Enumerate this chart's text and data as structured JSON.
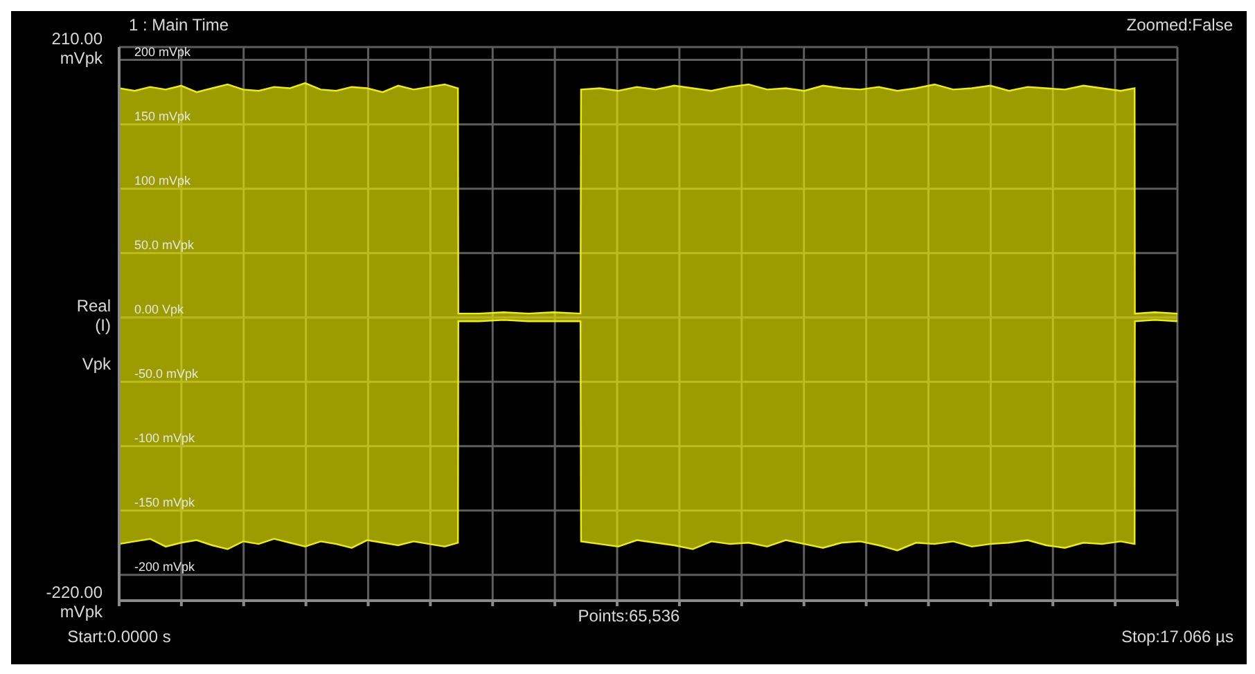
{
  "chart_data": {
    "type": "area",
    "title": "1 : Main Time",
    "ylabel": "Real (I) Vpk",
    "annotations": [
      "Zoomed:False",
      "Points:65,536"
    ],
    "x": [
      0,
      0.25,
      0.5,
      0.75,
      1,
      1.25,
      1.5,
      1.75,
      2,
      2.25,
      2.5,
      2.75,
      3,
      3.25,
      3.5,
      3.75,
      4,
      4.25,
      4.5,
      4.75,
      5,
      5.25,
      5.464,
      5.47,
      5.8,
      6.2,
      6.6,
      7.0,
      7.44,
      7.449,
      7.75,
      8.05,
      8.35,
      8.65,
      8.95,
      9.25,
      9.55,
      9.85,
      10.15,
      10.45,
      10.75,
      11.05,
      11.35,
      11.65,
      11.95,
      12.25,
      12.55,
      12.85,
      13.15,
      13.45,
      13.75,
      14.05,
      14.35,
      14.65,
      14.95,
      15.25,
      15.55,
      15.85,
      16.15,
      16.376,
      16.38,
      16.7,
      17.066
    ],
    "series": [
      {
        "color": "#f0f000",
        "values": [
          178,
          176,
          179,
          177,
          180,
          175,
          178,
          181,
          177,
          176,
          179,
          178,
          182,
          177,
          176,
          179,
          178,
          175,
          180,
          177,
          179,
          181,
          178,
          3,
          3,
          4,
          3,
          4,
          3,
          177,
          178,
          176,
          179,
          177,
          180,
          178,
          176,
          179,
          181,
          177,
          178,
          176,
          180,
          178,
          177,
          179,
          176,
          178,
          181,
          177,
          178,
          180,
          176,
          179,
          178,
          177,
          180,
          178,
          176,
          178,
          3,
          4,
          3
        ]
      },
      {
        "color": "#f0f000",
        "values": [
          -176,
          -174,
          -172,
          -178,
          -175,
          -173,
          -177,
          -180,
          -174,
          -176,
          -172,
          -175,
          -178,
          -174,
          -176,
          -179,
          -173,
          -175,
          -177,
          -174,
          -176,
          -178,
          -175,
          -3,
          -3,
          -2,
          -3,
          -3,
          -3,
          -174,
          -176,
          -178,
          -173,
          -175,
          -177,
          -180,
          -174,
          -176,
          -175,
          -178,
          -173,
          -176,
          -179,
          -175,
          -174,
          -177,
          -181,
          -175,
          -176,
          -174,
          -178,
          -176,
          -175,
          -173,
          -177,
          -179,
          -175,
          -176,
          -174,
          -176,
          -3,
          -2,
          -3
        ]
      }
    ],
    "xlim": [
      0,
      17.066
    ],
    "xticks": [
      {
        "value": 0,
        "label": "Start:0.0000 s"
      },
      {
        "value": 1.004,
        "label": null
      },
      {
        "value": 2.008,
        "label": null
      },
      {
        "value": 3.012,
        "label": null
      },
      {
        "value": 4.016,
        "label": null
      },
      {
        "value": 5.019,
        "label": null
      },
      {
        "value": 6.023,
        "label": null
      },
      {
        "value": 7.027,
        "label": null
      },
      {
        "value": 8.031,
        "label": null
      },
      {
        "value": 9.035,
        "label": null
      },
      {
        "value": 10.039,
        "label": null
      },
      {
        "value": 11.043,
        "label": null
      },
      {
        "value": 12.047,
        "label": null
      },
      {
        "value": 13.051,
        "label": null
      },
      {
        "value": 14.055,
        "label": null
      },
      {
        "value": 15.058,
        "label": null
      },
      {
        "value": 16.062,
        "label": null
      },
      {
        "value": 17.066,
        "label": "Stop:17.066 µs"
      }
    ],
    "ylim": [
      -220,
      210
    ],
    "yticks": [
      {
        "value": 210,
        "label": "210.00 mVpk"
      },
      {
        "value": -220,
        "label": "-220.00 mVpk"
      }
    ],
    "y2lim": [
      -220,
      210
    ],
    "y2ticks": [
      {
        "value": 200,
        "label": "200 mVpk"
      },
      {
        "value": 150,
        "label": "150 mVpk"
      },
      {
        "value": 100,
        "label": "100 mVpk"
      },
      {
        "value": 50,
        "label": "50.0 mVpk"
      },
      {
        "value": 0,
        "label": "0.00 Vpk"
      },
      {
        "value": -50,
        "label": "-50.0 mVpk"
      },
      {
        "value": -100,
        "label": "-100 mVpk"
      },
      {
        "value": -150,
        "label": "-150 mVpk"
      },
      {
        "value": -200,
        "label": "-200 mVpk"
      }
    ],
    "grid": true,
    "legend": false
  }
}
